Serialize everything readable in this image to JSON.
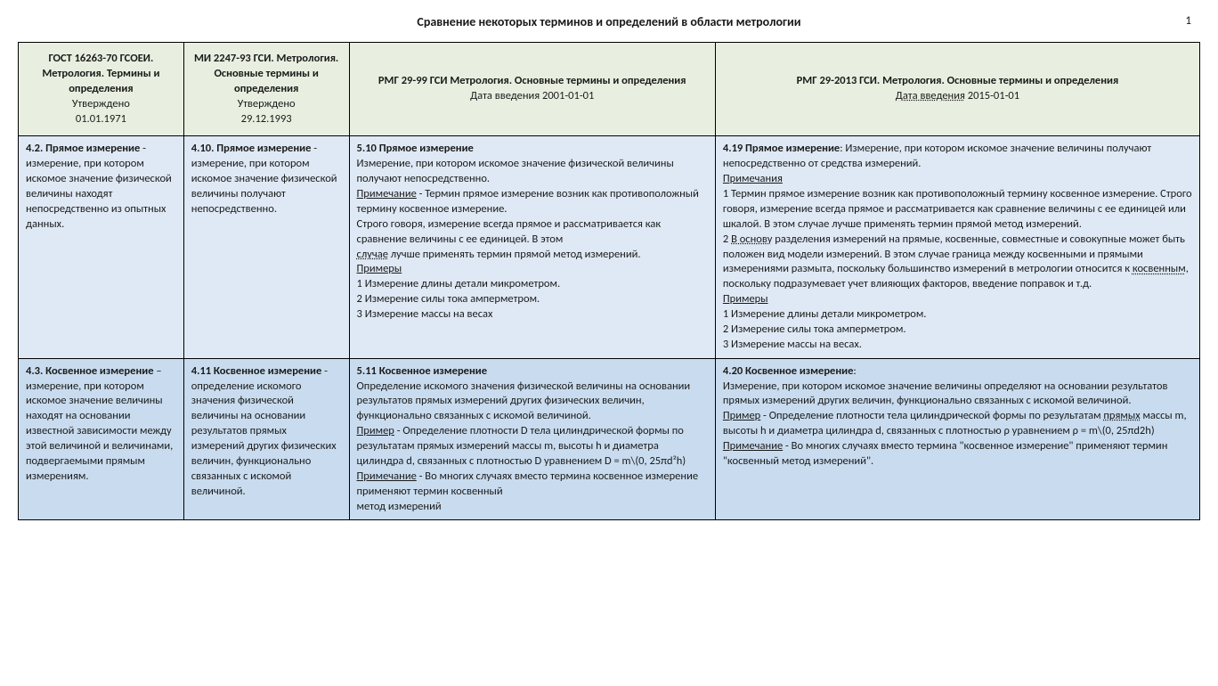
{
  "page": {
    "title": "Сравнение некоторых терминов и определений в области метрологии",
    "number": "1"
  },
  "columns": {
    "c1": {
      "bold": "ГОСТ 16263-70 ГСОЕИ. Метрология. Термины и определения",
      "sub1": "Утверждено",
      "sub2": "01.01.1971"
    },
    "c2": {
      "bold": "МИ 2247-93 ГСИ. Метрология. Основные термины и определения",
      "sub1": "Утверждено",
      "sub2": "29.12.1993"
    },
    "c3": {
      "bold": "РМГ 29-99 ГСИ Метрология.  Основные термины и определения",
      "sub1": "Дата введения 2001-01-01"
    },
    "c4": {
      "bold": "РМГ 29-2013 ГСИ.  Метрология.  Основные термины и определения",
      "sub1_prefix": "Дата введения",
      "sub1_date": "2015-01-01"
    }
  },
  "r1": {
    "c1_term": "4.2.  Прямое измерение",
    "c1_dash": " - ",
    "c1_body": "измерение, при котором искомое значение физической величины находят непосредственно из опытных данных.",
    "c2_term": "4.10.  Прямое измерение",
    "c2_dash": " - ",
    "c2_body": "измерение, при котором искомое значение физической величины получают непосредственно.",
    "c3_term": "5.10 Прямое измерение",
    "c3_body1": "Измерение, при котором искомое значение физической величины получают непосредственно.",
    "c3_note_lbl": "Примечание",
    "c3_note_body": " - Термин прямое измерение возник как противоположный термину косвенное измерение.",
    "c3_para2a": "Строго говоря, измерение всегда прямое и рассматривается как сравнение величины с ее единицей. В этом",
    "c3_para2_u": "случае",
    "c3_para2b": " лучше применять термин прямой метод измерений.",
    "c3_ex_lbl": "Примеры",
    "c3_ex1": "1 Измерение длины детали микрометром.",
    "c3_ex2": "2 Измерение силы тока амперметром.",
    "c3_ex3": "3 Измерение массы на весах",
    "c4_term": "4.19 Прямое измерение",
    "c4_lead": ": Измерение, при котором искомое значение величины получают непосредственно от средства измерений.",
    "c4_notes_lbl": "Примечания",
    "c4_n1": "1 Термин прямое измерение возник как противоположный термину косвенное измерение. Строго говоря, измерение всегда прямое и рассматривается как сравнение величины с ее единицей или шкалой. В этом случае лучше применять термин прямой метод измерений.",
    "c4_n2a": "2 ",
    "c4_n2_u1": "В основу",
    "c4_n2b": " разделения измерений на прямые, косвенные, совместные и совокупные может быть положен вид модели измерений. В этом случае граница между косвенными и прямыми измерениями размыта, поскольку большинство измерений в метрологии относится к ",
    "c4_n2_u2": "косвенным",
    "c4_n2c": ", поскольку подразумевает учет влияющих факторов, введение поправок и т.д.",
    "c4_ex_lbl": "Примеры",
    "c4_ex1": "1 Измерение длины детали микрометром.",
    "c4_ex2": "2 Измерение силы тока амперметром.",
    "c4_ex3": "3 Измерение массы на весах."
  },
  "r2": {
    "c1_term": "4.3.  Косвенное измерение",
    "c1_dash": " – ",
    "c1_body": "измерение, при котором искомое значение величины находят на основании известной зависимости между этой величиной и величинами, подвергаемыми прямым измерениям.",
    "c2_term": "4.11  Косвенное измерение",
    "c2_dash": " - ",
    "c2_body": "определение искомого значения физической величины на основании результатов прямых измерений других физических величин, функционально связанных с искомой величиной.",
    "c3_term": "5.11 Косвенное измерение",
    "c3_body1": "Определение искомого значения физической величины на основании результатов прямых измерений других физических величин, функционально связанных с искомой величиной.",
    "c3_ex_lbl": "Пример",
    "c3_ex_body": " - Определение плотности D тела цилиндрической формы по результатам прямых измерений массы m, высоты h и диаметра цилиндра d, связанных с плотностью D уравнением D = m\\(0, 25πd²h)",
    "c3_note_lbl": "Примечание",
    "c3_note_body": " - Во многих случаях вместо термина косвенное измерение применяют термин косвенный",
    "c3_tail": "метод измерений",
    "c4_term": "4.20 Косвенное измерение",
    "c4_colon": ":",
    "c4_body1": "Измерение, при котором искомое значение величины определяют на основании результатов прямых измерений других величин, функционально связанных с искомой величиной.",
    "c4_ex_lbl": "Пример",
    "c4_ex_a": " - Определение плотности тела цилиндрической формы по результатам ",
    "c4_ex_u": "прямых",
    "c4_ex_b": " массы m, высоты h и диаметра цилиндра d, связанных с плотностью ρ уравнением ρ = m\\(0, 25πd2h)",
    "c4_note_lbl": "Примечание",
    "c4_note_body": " -  Во многих случаях вместо термина \"косвенное измерение\" применяют термин \"косвенный метод измерений\"."
  }
}
